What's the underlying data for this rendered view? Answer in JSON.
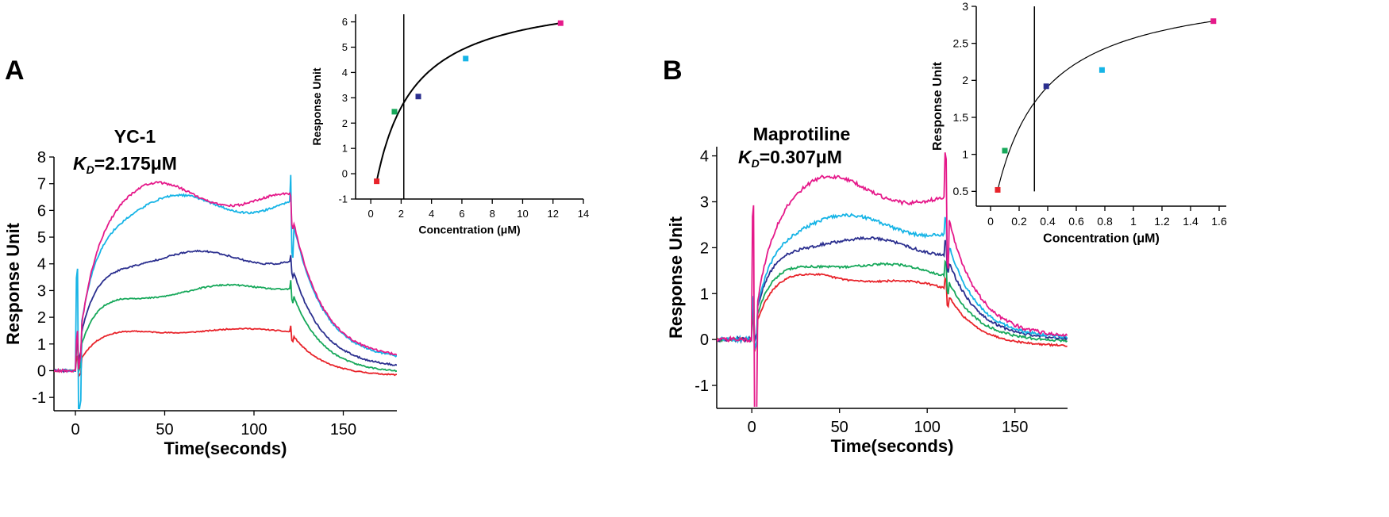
{
  "chart_data": [
    {
      "panel": "A",
      "type": "line",
      "title": "YC-1",
      "kd_text": "=2.175μM",
      "kd_symbol": "K",
      "kd_sub": "D",
      "xlabel": "Time(seconds)",
      "ylabel": "Response Unit",
      "xlim": [
        -12,
        180
      ],
      "ylim": [
        -1.5,
        8
      ],
      "xticks": [
        0,
        50,
        100,
        150
      ],
      "yticks": [
        -1,
        0,
        1,
        2,
        3,
        4,
        5,
        6,
        7,
        8
      ],
      "injection_start": 0,
      "injection_end": 120,
      "series": [
        {
          "name": "c1",
          "color": "#e8232a",
          "plateau": 1.5,
          "post": 1.5,
          "final": -0.2,
          "spike": 0.6
        },
        {
          "name": "c2",
          "color": "#16a85a",
          "plateau": 2.9,
          "post": 3.2,
          "final": -0.1,
          "spike": 0.8
        },
        {
          "name": "c3",
          "color": "#2b2f8f",
          "plateau": 4.3,
          "post": 4.2,
          "final": 0.1,
          "spike": 0.7
        },
        {
          "name": "c4",
          "color": "#16b4e6",
          "plateau": 6.3,
          "post": 6.2,
          "final": 0.4,
          "spike": 3.4
        },
        {
          "name": "c5",
          "color": "#e5198a",
          "plateau": 6.8,
          "post": 6.3,
          "final": 0.45,
          "spike": 1.0
        }
      ],
      "inset": {
        "type": "scatter",
        "xlabel": "Concentration (μM)",
        "ylabel": "Response Unit",
        "xlim": [
          -1,
          14
        ],
        "ylim": [
          -1,
          6.3
        ],
        "xticks": [
          0,
          2,
          4,
          6,
          8,
          10,
          12,
          14
        ],
        "yticks": [
          -1,
          0,
          1,
          2,
          3,
          4,
          5,
          6
        ],
        "vline_x": 2.175,
        "fit_x_range": [
          0.39,
          12.5
        ],
        "points": [
          {
            "x": 0.39,
            "y": -0.3,
            "color": "#e8232a"
          },
          {
            "x": 1.56,
            "y": 2.45,
            "color": "#16a85a"
          },
          {
            "x": 3.13,
            "y": 3.05,
            "color": "#2b2f8f"
          },
          {
            "x": 6.25,
            "y": 4.55,
            "color": "#16b4e6"
          },
          {
            "x": 12.5,
            "y": 5.95,
            "color": "#e5198a"
          }
        ]
      }
    },
    {
      "panel": "B",
      "type": "line",
      "title": "Maprotiline",
      "kd_text": "=0.307μM",
      "kd_symbol": "K",
      "kd_sub": "D",
      "xlabel": "Time(seconds)",
      "ylabel": "Response Unit",
      "xlim": [
        -20,
        180
      ],
      "ylim": [
        -1.5,
        4.2
      ],
      "xticks": [
        0,
        50,
        100,
        150
      ],
      "yticks": [
        -1,
        0,
        1,
        2,
        3,
        4
      ],
      "injection_start": 0,
      "injection_end": 110,
      "series": [
        {
          "name": "c1",
          "color": "#e8232a",
          "plateau": 1.45,
          "post": 1.1,
          "final": -0.15,
          "spike": 0.6
        },
        {
          "name": "c2",
          "color": "#16a85a",
          "plateau": 1.7,
          "post": 1.45,
          "final": -0.05,
          "spike": 0.7
        },
        {
          "name": "c3",
          "color": "#2b2f8f",
          "plateau": 2.2,
          "post": 1.95,
          "final": 0.0,
          "spike": 0.6
        },
        {
          "name": "c4",
          "color": "#16b4e6",
          "plateau": 2.65,
          "post": 2.35,
          "final": 0.02,
          "spike": 0.8
        },
        {
          "name": "c5",
          "color": "#e5198a",
          "plateau": 3.45,
          "post": 3.0,
          "final": 0.05,
          "spike": 2.7
        }
      ],
      "inset": {
        "type": "scatter",
        "xlabel": "Concentration (μM)",
        "ylabel": "Response Unit",
        "xlim": [
          -0.1,
          1.65
        ],
        "ylim": [
          0.3,
          3.0
        ],
        "xticks": [
          0.0,
          0.2,
          0.4,
          0.6,
          0.8,
          1.0,
          1.2,
          1.4,
          1.6
        ],
        "yticks": [
          0.5,
          1.0,
          1.5,
          2.0,
          2.5,
          3.0
        ],
        "vline_x": 0.307,
        "fit_x_range": [
          0.05,
          1.56
        ],
        "points": [
          {
            "x": 0.05,
            "y": 0.52,
            "color": "#e8232a"
          },
          {
            "x": 0.1,
            "y": 1.05,
            "color": "#16a85a"
          },
          {
            "x": 0.39,
            "y": 1.92,
            "color": "#2b2f8f"
          },
          {
            "x": 0.78,
            "y": 2.14,
            "color": "#16b4e6"
          },
          {
            "x": 1.56,
            "y": 2.8,
            "color": "#e5198a"
          }
        ]
      }
    }
  ]
}
